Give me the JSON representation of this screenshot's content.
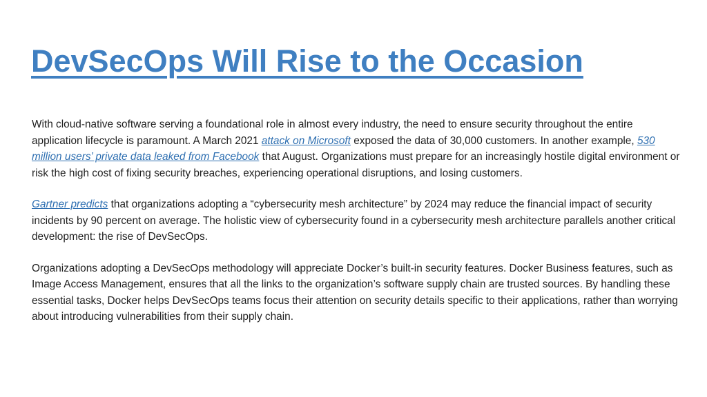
{
  "slide": {
    "title": "DevSecOps Will Rise to the Occasion",
    "paragraphs": [
      {
        "text_1": "With cloud-native software serving a foundational role in almost every industry, the need to ensure security throughout the entire application lifecycle is paramount. A March 2021 ",
        "link_1": "attack on Microsoft",
        "text_2": " exposed the data of 30,000 customers. In another example, ",
        "link_2": "530 million users’ private data leaked from Facebook",
        "text_3": " that August. Organizations must prepare for an increasingly hostile digital environment or risk the high cost of fixing security breaches, experiencing operational disruptions, and losing customers."
      },
      {
        "link_1": "Gartner predicts",
        "text_1": " that organizations adopting a “cybersecurity mesh architecture” by 2024 may reduce the financial impact of security incidents by 90 percent on average. The holistic view of cybersecurity found in a cybersecurity mesh architecture parallels another critical development: the rise of DevSecOps."
      },
      {
        "text_1": "Organizations adopting a DevSecOps methodology will appreciate Docker’s built-in security features. Docker Business features, such as Image Access Management, ensures that all the links to the organization’s software supply chain are trusted sources. By handling these essential tasks, Docker helps DevSecOps teams focus their attention on security details specific to their applications, rather than worrying about introducing vulnerabilities from their supply chain."
      }
    ]
  },
  "colors": {
    "title": "#3f7fc1",
    "link": "#2e6fb1",
    "body_text": "#1f1f1f",
    "background": "#ffffff"
  }
}
